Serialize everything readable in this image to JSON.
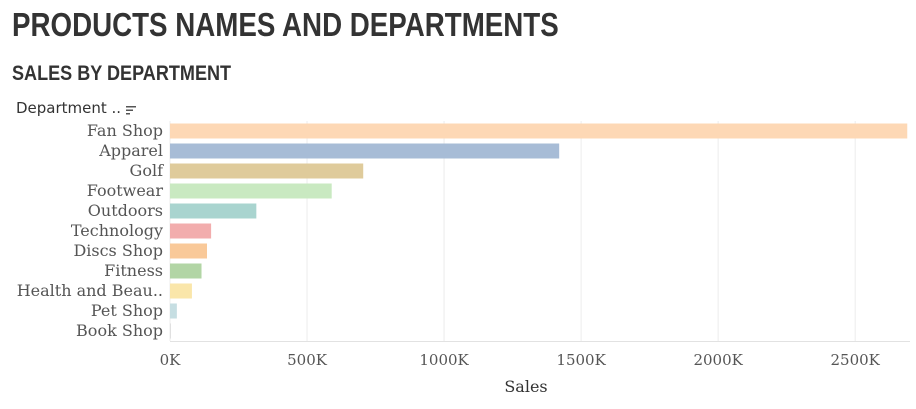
{
  "title": "PRODUCTS NAMES AND DEPARTMENTS",
  "subtitle": "SALES BY DEPARTMENT",
  "row_header": {
    "label": "Department ..",
    "sort_icon": "sort-descending-icon"
  },
  "chart_data": {
    "type": "bar",
    "orientation": "horizontal",
    "categories": [
      "Fan Shop",
      "Apparel",
      "Golf",
      "Footwear",
      "Outdoors",
      "Technology",
      "Discs Shop",
      "Fitness",
      "Health and Beau..",
      "Pet Shop",
      "Book Shop"
    ],
    "values": [
      2690000,
      1420000,
      705000,
      590000,
      315000,
      150000,
      135000,
      115000,
      80000,
      25000,
      3000
    ],
    "colors": [
      "#fdd8b5",
      "#a7bcd6",
      "#dfcb9b",
      "#c9e9c1",
      "#a9d4cf",
      "#f2adad",
      "#f9c999",
      "#b2d5a5",
      "#fae6aa",
      "#c6dee2",
      "#d9d9d9"
    ],
    "xlabel": "Sales",
    "ylabel": "",
    "xlim": [
      0,
      2700000
    ],
    "xticks": [
      0,
      500000,
      1000000,
      1500000,
      2000000,
      2500000
    ],
    "xtick_labels": [
      "0K",
      "500K",
      "1000K",
      "1500K",
      "2000K",
      "2500K"
    ],
    "grid": "vertical gridlines"
  }
}
